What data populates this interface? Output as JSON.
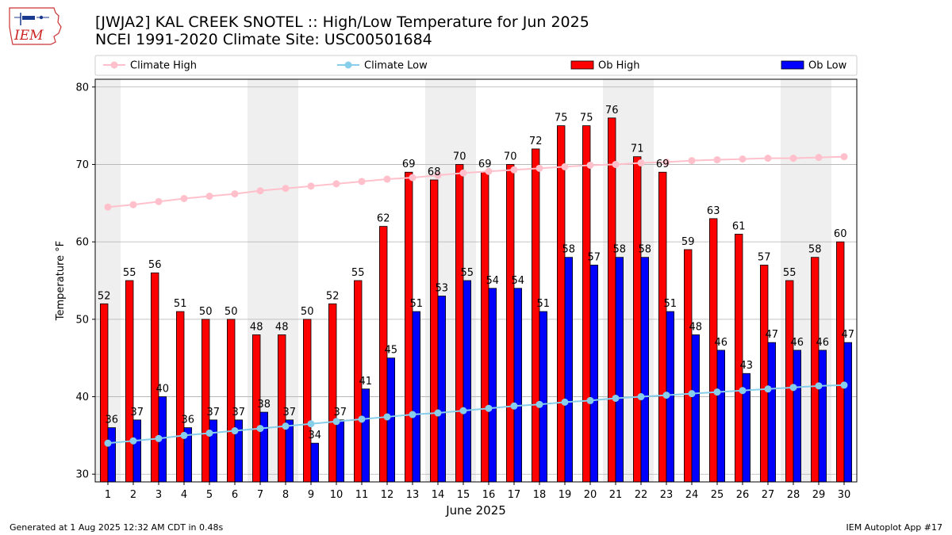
{
  "header": {
    "title_line1": "[JWJA2] KAL CREEK SNOTEL :: High/Low Temperature for Jun 2025",
    "title_line2": "NCEI 1991-2020 Climate Site: USC00501684",
    "logo_text": "IEM"
  },
  "footer": {
    "generated": "Generated at 1 Aug 2025 12:32 AM CDT in 0.48s",
    "app": "IEM Autoplot App #17"
  },
  "colors": {
    "ob_high": "#ff0000",
    "ob_low": "#0000ff",
    "climate_high": "#ffc0cb",
    "climate_low": "#87ceeb",
    "weekend_shade": "#efefef"
  },
  "chart_data": {
    "type": "bar",
    "xlabel": "June 2025",
    "ylabel": "Temperature °F",
    "ylim": [
      29,
      81
    ],
    "yticks": [
      30,
      40,
      50,
      60,
      70,
      80
    ],
    "grid": true,
    "legend_position": "top",
    "categories": [
      "1",
      "2",
      "3",
      "4",
      "5",
      "6",
      "7",
      "8",
      "9",
      "10",
      "11",
      "12",
      "13",
      "14",
      "15",
      "16",
      "17",
      "18",
      "19",
      "20",
      "21",
      "22",
      "23",
      "24",
      "25",
      "26",
      "27",
      "28",
      "29",
      "30"
    ],
    "weekend_days": [
      1,
      7,
      8,
      14,
      15,
      21,
      22,
      28,
      29
    ],
    "series": [
      {
        "name": "Ob High",
        "kind": "bar",
        "color": "#ff0000",
        "values": [
          52,
          55,
          56,
          51,
          50,
          50,
          48,
          48,
          50,
          52,
          55,
          62,
          69,
          68,
          70,
          69,
          70,
          72,
          75,
          75,
          76,
          71,
          69,
          59,
          63,
          61,
          57,
          55,
          58,
          60
        ]
      },
      {
        "name": "Ob Low",
        "kind": "bar",
        "color": "#0000ff",
        "values": [
          36,
          37,
          40,
          36,
          37,
          37,
          38,
          37,
          34,
          37,
          41,
          45,
          51,
          53,
          55,
          54,
          54,
          51,
          58,
          57,
          58,
          58,
          51,
          48,
          46,
          43,
          47,
          46,
          46,
          47
        ]
      },
      {
        "name": "Climate High",
        "kind": "line",
        "color": "#ffc0cb",
        "values": [
          64.5,
          64.8,
          65.2,
          65.6,
          65.9,
          66.2,
          66.6,
          66.9,
          67.2,
          67.5,
          67.8,
          68.1,
          68.3,
          68.6,
          68.9,
          69.1,
          69.3,
          69.5,
          69.7,
          69.9,
          70.0,
          70.2,
          70.3,
          70.5,
          70.6,
          70.7,
          70.8,
          70.8,
          70.9,
          71.0
        ]
      },
      {
        "name": "Climate Low",
        "kind": "line",
        "color": "#87ceeb",
        "values": [
          34.0,
          34.3,
          34.6,
          35.0,
          35.3,
          35.6,
          35.9,
          36.2,
          36.5,
          36.8,
          37.1,
          37.4,
          37.7,
          37.9,
          38.2,
          38.5,
          38.8,
          39.0,
          39.3,
          39.5,
          39.8,
          40.0,
          40.2,
          40.4,
          40.6,
          40.8,
          41.0,
          41.2,
          41.4,
          41.5
        ]
      }
    ]
  }
}
